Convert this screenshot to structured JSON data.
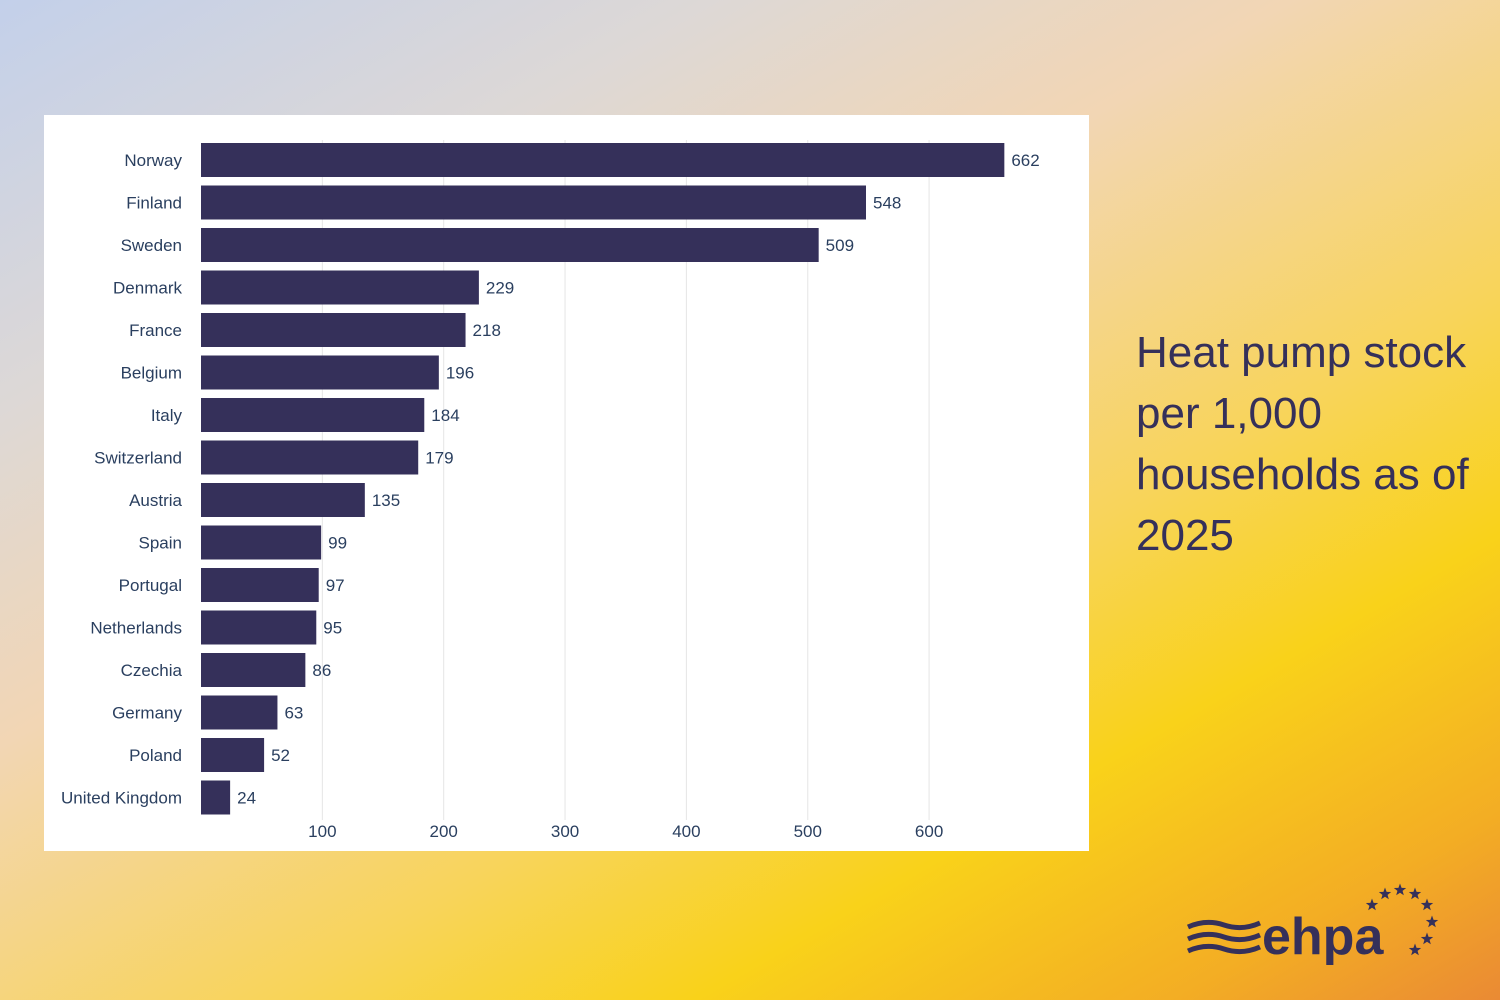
{
  "title": "Heat pump stock per 1,000 households as of 2025",
  "logo": {
    "text": "ehpa"
  },
  "colors": {
    "bar": "#35305a",
    "text": "#2a3f5f",
    "grid": "#e5e5e5"
  },
  "chart_data": {
    "type": "bar",
    "orientation": "horizontal",
    "title": "Heat pump stock per 1,000 households as of 2025",
    "categories": [
      "Norway",
      "Finland",
      "Sweden",
      "Denmark",
      "France",
      "Belgium",
      "Italy",
      "Switzerland",
      "Austria",
      "Spain",
      "Portugal",
      "Netherlands",
      "Czechia",
      "Germany",
      "Poland",
      "United Kingdom"
    ],
    "values": [
      662,
      548,
      509,
      229,
      218,
      196,
      184,
      179,
      135,
      99,
      97,
      95,
      86,
      63,
      52,
      24
    ],
    "xticks": [
      100,
      200,
      300,
      400,
      500,
      600
    ],
    "xlim": [
      0,
      700
    ],
    "grid": "vertical",
    "data_labels": true
  }
}
